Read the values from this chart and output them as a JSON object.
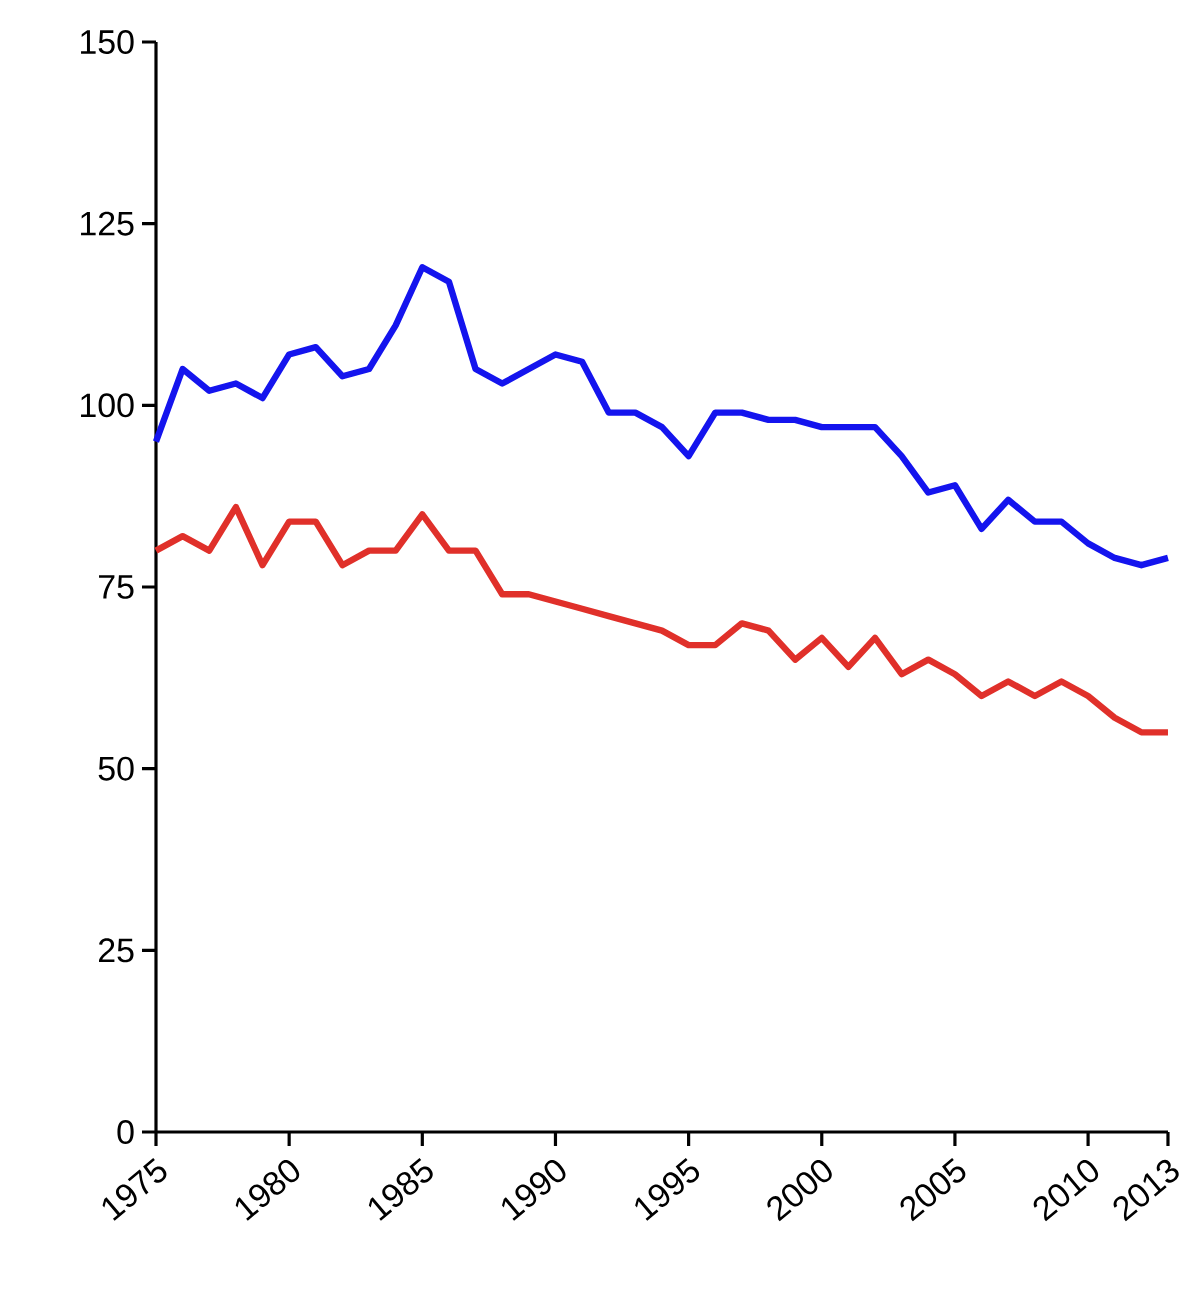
{
  "chart_data": {
    "type": "line",
    "x": [
      1975,
      1976,
      1977,
      1978,
      1979,
      1980,
      1981,
      1982,
      1983,
      1984,
      1985,
      1986,
      1987,
      1988,
      1989,
      1990,
      1991,
      1992,
      1993,
      1994,
      1995,
      1996,
      1997,
      1998,
      1999,
      2000,
      2001,
      2002,
      2003,
      2004,
      2005,
      2006,
      2007,
      2008,
      2009,
      2010,
      2011,
      2012,
      2013
    ],
    "series": [
      {
        "color": "#1414ee",
        "values": [
          95,
          105,
          102,
          103,
          101,
          107,
          108,
          104,
          105,
          111,
          119,
          117,
          105,
          103,
          105,
          107,
          106,
          99,
          99,
          97,
          93,
          99,
          99,
          98,
          98,
          97,
          97,
          97,
          93,
          88,
          89,
          83,
          87,
          84,
          84,
          81,
          79,
          78,
          79
        ]
      },
      {
        "color": "#e0302a",
        "values": [
          80,
          82,
          80,
          86,
          78,
          84,
          84,
          78,
          80,
          80,
          85,
          80,
          80,
          74,
          74,
          73,
          72,
          71,
          70,
          69,
          67,
          67,
          70,
          69,
          65,
          68,
          64,
          68,
          63,
          65,
          63,
          60,
          62,
          60,
          62,
          60,
          57,
          55,
          55
        ]
      }
    ],
    "xlim": [
      1975,
      2013
    ],
    "xticks": [
      1975,
      1980,
      1985,
      1990,
      1995,
      2000,
      2005,
      2010,
      2013
    ],
    "ylim": [
      0,
      150
    ],
    "yticks": [
      0,
      25,
      50,
      75,
      100,
      125,
      150
    ],
    "grid": false,
    "marker": "none",
    "line_style": "solid"
  }
}
